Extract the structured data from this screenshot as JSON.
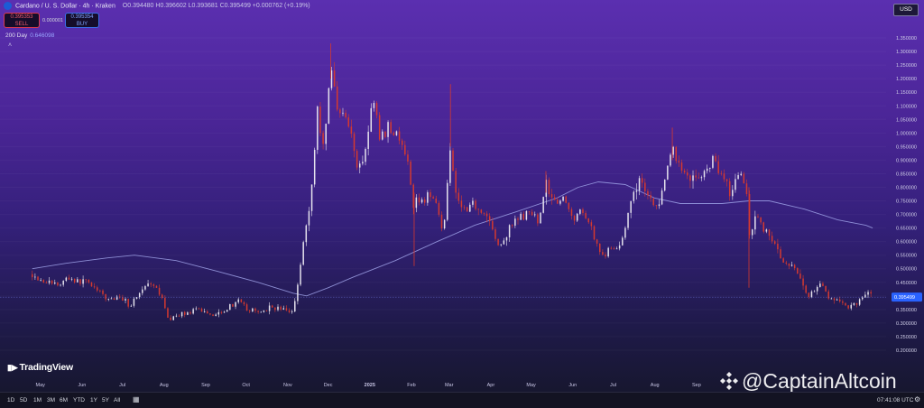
{
  "header": {
    "title": "Cardano / U. S. Dollar · 4h · Kraken",
    "ohlc": "O0.394480 H0.396602 L0.393681 C0.395499 +0.000762 (+0.19%)"
  },
  "trade": {
    "sell_price": "0.395353",
    "sell_label": "SELL",
    "spread": "0.000001",
    "buy_price": "0.395354",
    "buy_label": "BUY"
  },
  "indicator": {
    "name": "200 Day",
    "value": "0.646098"
  },
  "currency_button": "USD",
  "logo_text": "TradingView",
  "watermark": "@CaptainAltcoin",
  "range_buttons": [
    "1D",
    "5D",
    "1M",
    "3M",
    "6M",
    "YTD",
    "1Y",
    "5Y",
    "All"
  ],
  "clock": "07:41:08 UTC",
  "colors": {
    "up": "#e6e3ee",
    "down": "#d5392f",
    "ma": "#9ea1e6",
    "price_badge": "#2962ff"
  },
  "chart_data": {
    "type": "candlestick",
    "title": "Cardano / U. S. Dollar · 4h · Kraken",
    "ylim": [
      0.17,
      1.41
    ],
    "y_ticks": [
      "1.350000",
      "1.300000",
      "1.250000",
      "1.200000",
      "1.150000",
      "1.100000",
      "1.050000",
      "1.000000",
      "0.950000",
      "0.900000",
      "0.850000",
      "0.800000",
      "0.750000",
      "0.700000",
      "0.650000",
      "0.600000",
      "0.550000",
      "0.500000",
      "0.450000",
      "0.400000",
      "0.350000",
      "0.300000",
      "0.250000",
      "0.200000"
    ],
    "x_ticks": [
      "May",
      "Jun",
      "Jul",
      "Aug",
      "Sep",
      "Oct",
      "Nov",
      "Dec",
      "2025",
      "Feb",
      "Mar",
      "Apr",
      "May",
      "Jun",
      "Jul",
      "Aug",
      "Sep"
    ],
    "last_price": "0.395499",
    "price_path": [
      [
        "2024-04-25",
        0.48
      ],
      [
        "2024-05-01",
        0.46
      ],
      [
        "2024-05-08",
        0.45
      ],
      [
        "2024-05-15",
        0.44
      ],
      [
        "2024-05-22",
        0.47
      ],
      [
        "2024-05-29",
        0.45
      ],
      [
        "2024-06-05",
        0.46
      ],
      [
        "2024-06-12",
        0.42
      ],
      [
        "2024-06-19",
        0.39
      ],
      [
        "2024-06-26",
        0.39
      ],
      [
        "2024-07-03",
        0.39
      ],
      [
        "2024-07-06",
        0.36
      ],
      [
        "2024-07-13",
        0.41
      ],
      [
        "2024-07-20",
        0.44
      ],
      [
        "2024-07-27",
        0.42
      ],
      [
        "2024-08-02",
        0.36
      ],
      [
        "2024-08-05",
        0.3
      ],
      [
        "2024-08-10",
        0.33
      ],
      [
        "2024-08-20",
        0.34
      ],
      [
        "2024-08-28",
        0.35
      ],
      [
        "2024-09-06",
        0.33
      ],
      [
        "2024-09-15",
        0.35
      ],
      [
        "2024-09-25",
        0.38
      ],
      [
        "2024-10-02",
        0.35
      ],
      [
        "2024-10-10",
        0.34
      ],
      [
        "2024-10-20",
        0.36
      ],
      [
        "2024-10-28",
        0.35
      ],
      [
        "2024-11-05",
        0.34
      ],
      [
        "2024-11-07",
        0.4
      ],
      [
        "2024-11-12",
        0.58
      ],
      [
        "2024-11-18",
        0.75
      ],
      [
        "2024-11-23",
        1.08
      ],
      [
        "2024-11-28",
        0.95
      ],
      [
        "2024-12-03",
        1.25
      ],
      [
        "2024-12-08",
        1.1
      ],
      [
        "2024-12-12",
        1.08
      ],
      [
        "2024-12-18",
        1.0
      ],
      [
        "2024-12-22",
        0.88
      ],
      [
        "2024-12-28",
        0.91
      ],
      [
        "2025-01-03",
        1.12
      ],
      [
        "2025-01-09",
        0.98
      ],
      [
        "2025-01-16",
        1.03
      ],
      [
        "2025-01-22",
        0.98
      ],
      [
        "2025-01-28",
        0.92
      ],
      [
        "2025-02-02",
        0.74
      ],
      [
        "2025-02-06",
        0.75
      ],
      [
        "2025-02-12",
        0.76
      ],
      [
        "2025-02-18",
        0.78
      ],
      [
        "2025-02-25",
        0.63
      ],
      [
        "2025-03-02",
        0.97
      ],
      [
        "2025-03-06",
        0.78
      ],
      [
        "2025-03-12",
        0.72
      ],
      [
        "2025-03-18",
        0.74
      ],
      [
        "2025-03-25",
        0.72
      ],
      [
        "2025-04-01",
        0.67
      ],
      [
        "2025-04-07",
        0.57
      ],
      [
        "2025-04-14",
        0.64
      ],
      [
        "2025-04-22",
        0.69
      ],
      [
        "2025-04-29",
        0.7
      ],
      [
        "2025-05-06",
        0.68
      ],
      [
        "2025-05-12",
        0.81
      ],
      [
        "2025-05-18",
        0.76
      ],
      [
        "2025-05-25",
        0.75
      ],
      [
        "2025-06-01",
        0.69
      ],
      [
        "2025-06-10",
        0.71
      ],
      [
        "2025-06-17",
        0.62
      ],
      [
        "2025-06-22",
        0.55
      ],
      [
        "2025-06-30",
        0.57
      ],
      [
        "2025-07-07",
        0.6
      ],
      [
        "2025-07-14",
        0.73
      ],
      [
        "2025-07-21",
        0.84
      ],
      [
        "2025-07-28",
        0.76
      ],
      [
        "2025-08-02",
        0.72
      ],
      [
        "2025-08-08",
        0.8
      ],
      [
        "2025-08-14",
        0.95
      ],
      [
        "2025-08-20",
        0.87
      ],
      [
        "2025-08-27",
        0.84
      ],
      [
        "2025-09-04",
        0.83
      ],
      [
        "2025-09-12",
        0.9
      ],
      [
        "2025-09-20",
        0.86
      ],
      [
        "2025-09-26",
        0.78
      ],
      [
        "2025-10-03",
        0.85
      ],
      [
        "2025-10-08",
        0.82
      ],
      [
        "2025-10-10",
        0.62
      ],
      [
        "2025-10-15",
        0.7
      ],
      [
        "2025-10-22",
        0.64
      ],
      [
        "2025-10-30",
        0.59
      ],
      [
        "2025-11-04",
        0.52
      ],
      [
        "2025-11-12",
        0.5
      ],
      [
        "2025-11-18",
        0.46
      ],
      [
        "2025-11-22",
        0.4
      ],
      [
        "2025-11-28",
        0.42
      ],
      [
        "2025-12-03",
        0.44
      ],
      [
        "2025-12-08",
        0.4
      ],
      [
        "2025-12-15",
        0.38
      ],
      [
        "2025-12-22",
        0.36
      ],
      [
        "2025-12-28",
        0.37
      ],
      [
        "2026-01-03",
        0.4
      ],
      [
        "2026-01-06",
        0.42
      ],
      [
        "2026-01-10",
        0.395
      ]
    ],
    "ma_200": [
      [
        "2024-04-25",
        0.5
      ],
      [
        "2024-05-20",
        0.52
      ],
      [
        "2024-06-20",
        0.54
      ],
      [
        "2024-07-10",
        0.55
      ],
      [
        "2024-08-10",
        0.53
      ],
      [
        "2024-09-10",
        0.49
      ],
      [
        "2024-10-10",
        0.45
      ],
      [
        "2024-11-05",
        0.41
      ],
      [
        "2024-11-15",
        0.4
      ],
      [
        "2024-12-01",
        0.43
      ],
      [
        "2024-12-20",
        0.47
      ],
      [
        "2025-01-20",
        0.53
      ],
      [
        "2025-02-20",
        0.6
      ],
      [
        "2025-03-20",
        0.66
      ],
      [
        "2025-04-20",
        0.71
      ],
      [
        "2025-05-20",
        0.76
      ],
      [
        "2025-06-05",
        0.8
      ],
      [
        "2025-06-20",
        0.82
      ],
      [
        "2025-07-10",
        0.81
      ],
      [
        "2025-08-01",
        0.76
      ],
      [
        "2025-08-20",
        0.74
      ],
      [
        "2025-09-20",
        0.74
      ],
      [
        "2025-10-10",
        0.75
      ],
      [
        "2025-10-25",
        0.75
      ],
      [
        "2025-11-20",
        0.72
      ],
      [
        "2025-12-15",
        0.68
      ],
      [
        "2026-01-05",
        0.66
      ],
      [
        "2026-01-10",
        0.65
      ]
    ]
  }
}
